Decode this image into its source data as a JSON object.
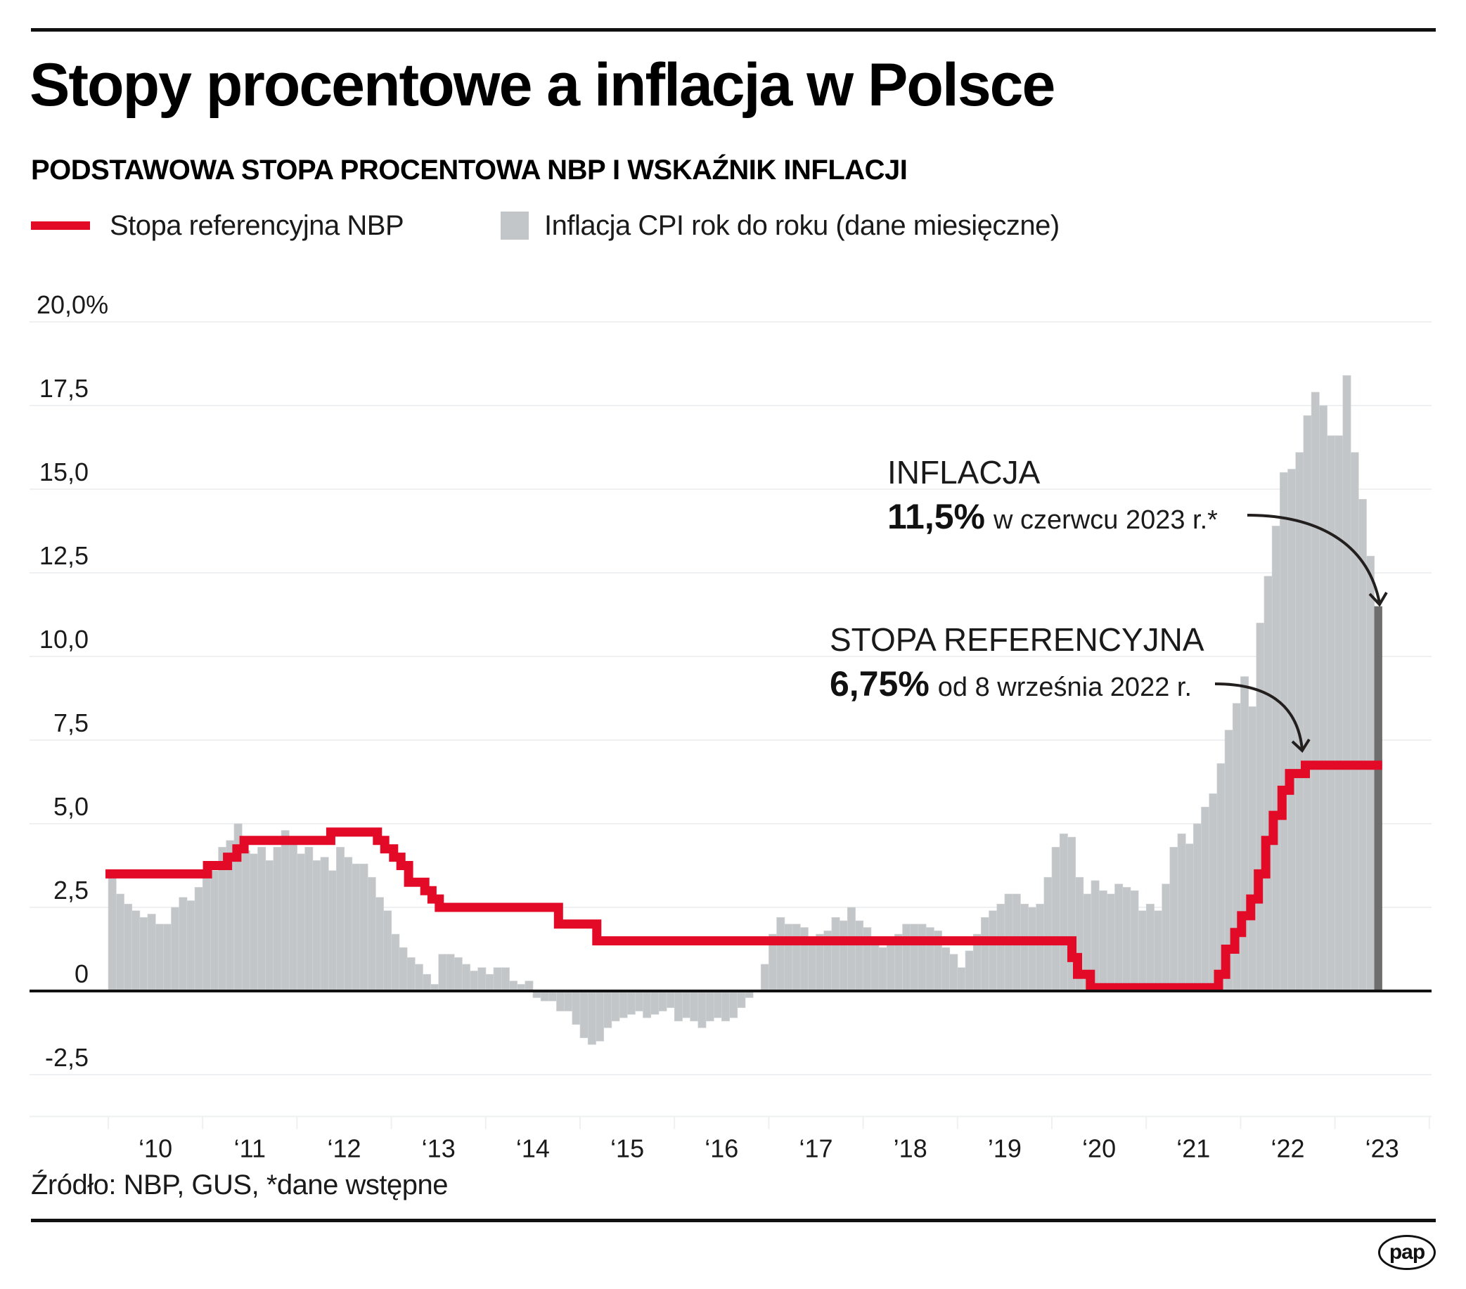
{
  "header": {
    "title": "Stopy procentowe a inflacja w Polsce",
    "subtitle": "PODSTAWOWA STOPA PROCENTOWA NBP I WSKAŹNIK INFLACJI"
  },
  "legend": {
    "rate_label": "Stopa referencyjna NBP",
    "cpi_label": "Inflacja CPI rok do roku (dane miesięczne)"
  },
  "annotations": {
    "inflation": {
      "heading": "INFLACJA",
      "value": "11,5%",
      "text": "w czerwcu 2023 r.*"
    },
    "rate": {
      "heading": "STOPA REFERENCYJNA",
      "value": "6,75%",
      "text": "od 8 września 2022 r."
    }
  },
  "footer": {
    "source": "Źródło: NBP, GUS, *dane wstępne",
    "logo": "pap"
  },
  "colors": {
    "rate_line": "#E30A27",
    "cpi_bar": "#C3C6C8",
    "cpi_bar_latest": "#6E6E6E",
    "axis": "#111111",
    "grid": "#EEF0F1"
  },
  "chart_data": {
    "type": "bar",
    "title": "Stopy procentowe a inflacja w Polsce",
    "subtitle": "PODSTAWOWA STOPA PROCENTOWA NBP I WSKAŹNIK INFLACJI",
    "xlabel": "",
    "ylabel": "%",
    "ylim": [
      -3.75,
      20
    ],
    "yticks": [
      20,
      17.5,
      15,
      12.5,
      10,
      7.5,
      5,
      2.5,
      0,
      -2.5
    ],
    "ytick_labels": [
      "20,0%",
      "17,5",
      "15,0",
      "12,5",
      "10,0",
      "7,5",
      "5,0",
      "2,5",
      "0",
      "-2,5"
    ],
    "x_start": "2010-01",
    "x_end": "2023-06",
    "xtick_labels": [
      "‘10",
      "‘11",
      "‘12",
      "‘13",
      "‘14",
      "‘15",
      "‘16",
      "‘17",
      "’18",
      "’19",
      "‘20",
      "‘21",
      "‘22",
      "‘23"
    ],
    "grid": true,
    "legend_position": "top-left",
    "series": [
      {
        "name": "Inflacja CPI rok do roku (dane miesięczne)",
        "type": "bar",
        "frequency": "monthly",
        "start": "2010-01",
        "values": [
          3.5,
          2.9,
          2.6,
          2.4,
          2.2,
          2.3,
          2.0,
          2.0,
          2.5,
          2.8,
          2.7,
          3.1,
          3.6,
          3.6,
          4.3,
          4.5,
          5.0,
          4.2,
          4.1,
          4.3,
          3.9,
          4.3,
          4.8,
          4.6,
          4.1,
          4.3,
          3.9,
          4.0,
          3.6,
          4.3,
          4.0,
          3.8,
          3.8,
          3.4,
          2.8,
          2.4,
          1.7,
          1.3,
          1.0,
          0.8,
          0.5,
          0.2,
          1.1,
          1.1,
          1.0,
          0.8,
          0.6,
          0.7,
          0.5,
          0.7,
          0.7,
          0.3,
          0.2,
          0.3,
          -0.2,
          -0.3,
          -0.3,
          -0.6,
          -0.6,
          -1.0,
          -1.4,
          -1.6,
          -1.5,
          -1.1,
          -0.9,
          -0.8,
          -0.7,
          -0.6,
          -0.8,
          -0.7,
          -0.6,
          -0.5,
          -0.9,
          -0.8,
          -0.9,
          -1.1,
          -0.9,
          -0.8,
          -0.9,
          -0.8,
          -0.5,
          -0.2,
          0.0,
          0.8,
          1.7,
          2.2,
          2.0,
          2.0,
          1.9,
          1.5,
          1.7,
          1.8,
          2.2,
          2.1,
          2.5,
          2.1,
          1.9,
          1.4,
          1.3,
          1.6,
          1.7,
          2.0,
          2.0,
          2.0,
          1.9,
          1.8,
          1.3,
          1.1,
          0.7,
          1.2,
          1.7,
          2.2,
          2.4,
          2.6,
          2.9,
          2.9,
          2.6,
          2.5,
          2.6,
          3.4,
          4.3,
          4.7,
          4.6,
          3.4,
          2.9,
          3.3,
          3.0,
          2.9,
          3.2,
          3.1,
          3.0,
          2.4,
          2.6,
          2.4,
          3.2,
          4.3,
          4.7,
          4.4,
          5.0,
          5.5,
          5.9,
          6.8,
          7.8,
          8.6,
          9.4,
          8.5,
          11.0,
          12.4,
          13.9,
          15.5,
          15.6,
          16.1,
          17.2,
          17.9,
          17.5,
          16.6,
          16.6,
          18.4,
          16.1,
          14.7,
          13.0,
          11.5
        ],
        "highlight_last": true
      },
      {
        "name": "Stopa referencyjna NBP",
        "type": "step-line",
        "changes": [
          {
            "date": "2010-01-01",
            "value": 3.5
          },
          {
            "date": "2011-01-20",
            "value": 3.75
          },
          {
            "date": "2011-04-06",
            "value": 4.0
          },
          {
            "date": "2011-05-12",
            "value": 4.25
          },
          {
            "date": "2011-06-09",
            "value": 4.5
          },
          {
            "date": "2012-05-10",
            "value": 4.75
          },
          {
            "date": "2012-11-08",
            "value": 4.5
          },
          {
            "date": "2012-12-06",
            "value": 4.25
          },
          {
            "date": "2013-01-10",
            "value": 4.0
          },
          {
            "date": "2013-02-07",
            "value": 3.75
          },
          {
            "date": "2013-03-07",
            "value": 3.25
          },
          {
            "date": "2013-05-09",
            "value": 3.0
          },
          {
            "date": "2013-06-06",
            "value": 2.75
          },
          {
            "date": "2013-07-04",
            "value": 2.5
          },
          {
            "date": "2014-10-09",
            "value": 2.0
          },
          {
            "date": "2015-03-05",
            "value": 1.5
          },
          {
            "date": "2020-03-18",
            "value": 1.0
          },
          {
            "date": "2020-04-09",
            "value": 0.5
          },
          {
            "date": "2020-05-29",
            "value": 0.1
          },
          {
            "date": "2021-10-07",
            "value": 0.5
          },
          {
            "date": "2021-11-04",
            "value": 1.25
          },
          {
            "date": "2021-12-09",
            "value": 1.75
          },
          {
            "date": "2022-01-05",
            "value": 2.25
          },
          {
            "date": "2022-02-09",
            "value": 2.75
          },
          {
            "date": "2022-03-09",
            "value": 3.5
          },
          {
            "date": "2022-04-07",
            "value": 4.5
          },
          {
            "date": "2022-05-06",
            "value": 5.25
          },
          {
            "date": "2022-06-09",
            "value": 6.0
          },
          {
            "date": "2022-07-08",
            "value": 6.5
          },
          {
            "date": "2022-09-08",
            "value": 6.75
          }
        ],
        "end": "2023-07-01"
      }
    ],
    "annotations": [
      {
        "label": "INFLACJA 11,5% w czerwcu 2023 r.*",
        "target": "2023-06",
        "value": 11.5
      },
      {
        "label": "STOPA REFERENCYJNA 6,75% od 8 września 2022 r.",
        "target": "2022-09-08",
        "value": 6.75
      }
    ]
  }
}
